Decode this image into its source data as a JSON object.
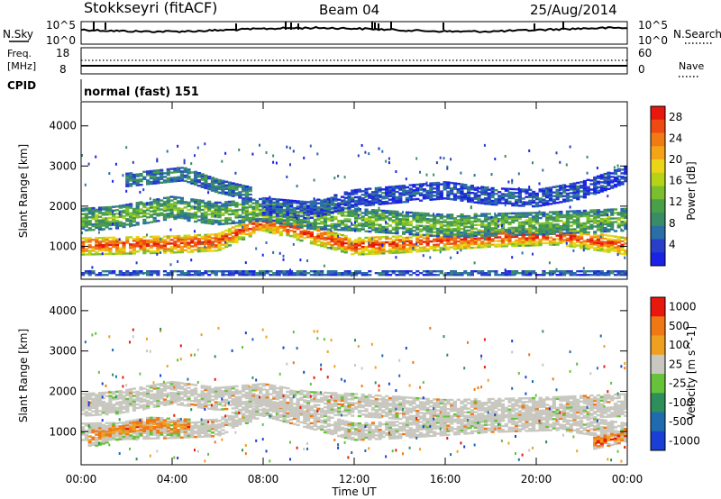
{
  "header": {
    "station": "Stokkseyri (fitACF)",
    "beam": "Beam 04",
    "date": "25/Aug/2014"
  },
  "strip_labels": {
    "nsky": "N.Sky",
    "nsky_hi": "10^5",
    "nsky_lo": "10^0",
    "nsearch": "N.Search",
    "nsearch_hi": "10^5",
    "nsearch_lo": "10^0",
    "freq_line1": "Freq.",
    "freq_line2": "[MHz]",
    "freq_hi": "18",
    "freq_lo": "8",
    "nave_hi": "60",
    "nave_lo": "0",
    "nave": "Nave",
    "cpid": "CPID",
    "cpid_value": "normal (fast) 151"
  },
  "chart_data": [
    {
      "type": "heatmap",
      "name": "power",
      "ylabel": "Slant Range [km]",
      "yticks": [
        1000,
        2000,
        3000,
        4000
      ],
      "ylim": [
        180,
        4600
      ],
      "xlim": [
        0,
        24
      ],
      "colorbar": {
        "label": "Power [dB]",
        "ticks": [
          4,
          8,
          12,
          16,
          20,
          24,
          28
        ],
        "colors": [
          "#1a22e6",
          "#2a3fc9",
          "#2b6fa7",
          "#3a8c66",
          "#4a9f4a",
          "#7bbf2e",
          "#b5d418",
          "#ecd418",
          "#f3a516",
          "#f07a14",
          "#ee4a12",
          "#e8180f"
        ]
      },
      "bands": [
        {
          "t": [
            0.0,
            4.0,
            6.0,
            8.0,
            12.0,
            14.0,
            18.0,
            21.0,
            24.0
          ],
          "r": [
            1000,
            1050,
            1100,
            1600,
            1000,
            1050,
            1200,
            1250,
            1000
          ],
          "width": 450,
          "level": 0.92
        },
        {
          "t": [
            0.0,
            1.5,
            4.0,
            6.0,
            8.0,
            10.0,
            12.0,
            16.0,
            20.0,
            24.0
          ],
          "r": [
            1650,
            1700,
            1950,
            1800,
            1900,
            1700,
            1650,
            1500,
            1550,
            1650
          ],
          "width": 550,
          "level": 0.45
        },
        {
          "t": [
            2.0,
            4.5,
            6.0,
            7.5
          ],
          "r": [
            2650,
            2800,
            2500,
            2300
          ],
          "width": 350,
          "level": 0.3
        },
        {
          "t": [
            8.0,
            10.0,
            12.0,
            14.0,
            16.0,
            18.0,
            20.0,
            22.0,
            24.0
          ],
          "r": [
            2000,
            1900,
            2200,
            2300,
            2400,
            2250,
            2200,
            2400,
            2800
          ],
          "width": 450,
          "level": 0.18
        },
        {
          "t": [
            0.0,
            2.0,
            4.0,
            6.0,
            8.0,
            10.0,
            12.0,
            14.0,
            16.0,
            18.0,
            20.0,
            22.0,
            24.0
          ],
          "r": [
            330,
            330,
            330,
            330,
            330,
            330,
            330,
            330,
            330,
            330,
            330,
            330,
            330
          ],
          "width": 120,
          "level": 0.22
        }
      ]
    },
    {
      "type": "heatmap",
      "name": "velocity",
      "ylabel": "Slant Range [km]",
      "xlabel": "Time UT",
      "yticks": [
        1000,
        2000,
        3000,
        4000
      ],
      "xticks": [
        "00:00",
        "04:00",
        "08:00",
        "12:00",
        "16:00",
        "20:00",
        "00:00"
      ],
      "xtick_hours": [
        0,
        4,
        8,
        12,
        16,
        20,
        24
      ],
      "ylim": [
        180,
        4600
      ],
      "xlim": [
        0,
        24
      ],
      "colorbar": {
        "label": "Velocity [m s^-1]",
        "ticks": [
          "1000",
          "500",
          "100",
          "25",
          "-25",
          "-100",
          "-500",
          "-1000"
        ],
        "colors": [
          "#1a3fd6",
          "#1f6bb0",
          "#2e8f5a",
          "#66c23a",
          "#c8c8c0",
          "#f0a020",
          "#f07814",
          "#e8180f"
        ]
      },
      "bands": [
        {
          "t": [
            0.0,
            4.0,
            6.0,
            8.0,
            12.0,
            14.0,
            18.0,
            21.0,
            24.0
          ],
          "r": [
            1000,
            1050,
            1100,
            1600,
            1000,
            1050,
            1200,
            1250,
            1000
          ],
          "width": 450,
          "level": 0.5
        },
        {
          "t": [
            0.0,
            1.5,
            4.0,
            6.0,
            8.0,
            10.0,
            12.0,
            16.0,
            20.0,
            24.0
          ],
          "r": [
            1650,
            1700,
            1950,
            1800,
            1900,
            1700,
            1650,
            1500,
            1550,
            1650
          ],
          "width": 550,
          "level": 0.5
        },
        {
          "t": [
            0.3,
            1.5,
            3.0,
            4.8
          ],
          "r": [
            800,
            1000,
            1150,
            1100
          ],
          "width": 450,
          "level": 0.82
        },
        {
          "t": [
            22.5,
            23.3,
            24.0
          ],
          "r": [
            700,
            800,
            900
          ],
          "width": 300,
          "level": 0.95
        }
      ]
    }
  ]
}
